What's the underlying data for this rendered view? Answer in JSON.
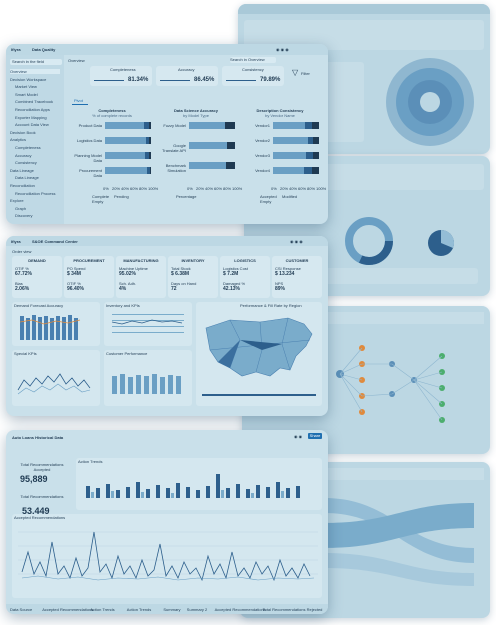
{
  "top_card": {
    "title": "Data Quality",
    "logo": "Ifiyra",
    "overview": "Overview",
    "search_placeholder": "Search in Overview",
    "filter_label": "Filter",
    "pivot_label": "Pivot",
    "kpis": [
      {
        "label": "Completeness",
        "value": "81.34%"
      },
      {
        "label": "Accuracy",
        "value": "86.45%"
      },
      {
        "label": "Consistency",
        "value": "79.89%"
      }
    ],
    "sidebar": [
      "Overview",
      "Decision Workspace",
      "Market View",
      "Smart Model",
      "Combined Tracebook",
      "Reconciliation Apps",
      "Exporter Mapping",
      "Account Data View",
      "Decision Book",
      "Analytics",
      "Completeness",
      "Accuracy",
      "Consistency",
      "Data Lineage",
      "Data Lineage",
      "Reconciliation",
      "Reconciliation Process",
      "Explore",
      "Graph",
      "Discovery"
    ],
    "charts": [
      {
        "title": "Completeness",
        "subtitle": "% of complete records",
        "rows": [
          "Product Data",
          "Logistics Data",
          "Planning Model Data",
          "Procurement Data"
        ],
        "legend": [
          "Complete",
          "Pending",
          "Empty"
        ]
      },
      {
        "title": "Data Science Accuracy",
        "subtitle": "by Model Type",
        "rows": [
          "Fuzzy Model",
          "Google Translate API",
          "Benchmark Simulation"
        ],
        "legend": [
          "Percentage"
        ]
      },
      {
        "title": "Description Consistency",
        "subtitle": "by Vendor Name",
        "rows": [
          "Vendor1",
          "Vendor2",
          "Vendor3",
          "Vendor4"
        ],
        "legend": [
          "Accepted",
          "Modified",
          "Empty"
        ]
      }
    ],
    "axis_ticks": [
      "0%",
      "20%",
      "40%",
      "60%",
      "80%",
      "100%"
    ]
  },
  "mid_card": {
    "title": "S&OE Command Center",
    "logo": "Ifiyra",
    "sub": "Order view",
    "columns": [
      {
        "label": "DEMAND",
        "k1": "OTIF %",
        "v1": "67.72%",
        "k2": "Bias",
        "v2": "2.06%"
      },
      {
        "label": "PROCUREMENT",
        "k1": "PO Spend",
        "v1": "$ 34M",
        "k2": "OTIF %",
        "v2": "96.40%"
      },
      {
        "label": "MANUFACTURING",
        "k1": "Machine Uptime",
        "v1": "95.02%",
        "k2": "Sch. Adh.",
        "v2": "4%"
      },
      {
        "label": "INVENTORY",
        "k1": "Total Stock",
        "v1": "$ 6.38M",
        "k2": "Days on Hand",
        "v2": "72"
      },
      {
        "label": "LOGISTICS",
        "k1": "Logistics Cost",
        "v1": "$ 7.2M",
        "k2": "Damaged %",
        "v2": "42.13%"
      },
      {
        "label": "CUSTOMER",
        "k1": "CSI Response",
        "v1": "$ 13.234",
        "k2": "NPS",
        "v2": "89%"
      }
    ],
    "chart_titles": [
      "Demand Forecast Accuracy",
      "Inventory and KPIs",
      "Special KPIs",
      "Customer Performance",
      "Performance & Fill Rate by Region"
    ]
  },
  "bottom_card": {
    "title": "Auto Loans Historical Data",
    "kpis": [
      {
        "label": "Total Recommendations Accepted",
        "value": "95,889"
      },
      {
        "label": "Total Recommendations",
        "value": "53,449"
      }
    ],
    "chart1_title": "Action Trends",
    "chart2_title": "Accepted Recommendations",
    "legend1": [
      "Accepted Today",
      "Auto Accepted Today",
      "Rejected Today"
    ],
    "legend2": [
      "Actual Trend",
      "Expected Trend",
      "Trend"
    ],
    "tabs": [
      "Data Source",
      "Accepted Recommendations",
      "Action Trends",
      "Action Trends",
      "Summary",
      "Summary 2",
      "Accepted Recommendations",
      "Total Recommendations Rejected"
    ],
    "button": "Share"
  },
  "colors": {
    "card": "#c9e0ea",
    "bar_dark": "#2d5f8c",
    "bar_mid": "#6a9fc4",
    "bar_light": "#94bdd6",
    "accent": "#1f6fb0"
  }
}
